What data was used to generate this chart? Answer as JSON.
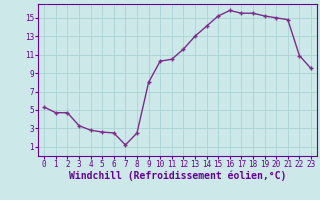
{
  "x": [
    0,
    1,
    2,
    3,
    4,
    5,
    6,
    7,
    8,
    9,
    10,
    11,
    12,
    13,
    14,
    15,
    16,
    17,
    18,
    19,
    20,
    21,
    22,
    23
  ],
  "y": [
    5.3,
    4.7,
    4.7,
    3.3,
    2.8,
    2.6,
    2.5,
    1.2,
    2.5,
    8.0,
    10.3,
    10.5,
    11.6,
    13.0,
    14.1,
    15.2,
    15.8,
    15.5,
    15.5,
    15.2,
    15.0,
    14.8,
    10.9,
    9.5
  ],
  "line_color": "#7b2d8b",
  "marker": "+",
  "bg_color": "#cce8e8",
  "grid_color": "#aad4d4",
  "axis_color": "#660099",
  "xlabel": "Windchill (Refroidissement éolien,°C)",
  "xlim": [
    -0.5,
    23.5
  ],
  "ylim": [
    0,
    16.5
  ],
  "yticks": [
    1,
    3,
    5,
    7,
    9,
    11,
    13,
    15
  ],
  "xticks": [
    0,
    1,
    2,
    3,
    4,
    5,
    6,
    7,
    8,
    9,
    10,
    11,
    12,
    13,
    14,
    15,
    16,
    17,
    18,
    19,
    20,
    21,
    22,
    23
  ],
  "tick_fontsize": 5.5,
  "xlabel_fontsize": 7.0,
  "line_width": 1.0,
  "marker_size": 3.5,
  "marker_ew": 1.0
}
